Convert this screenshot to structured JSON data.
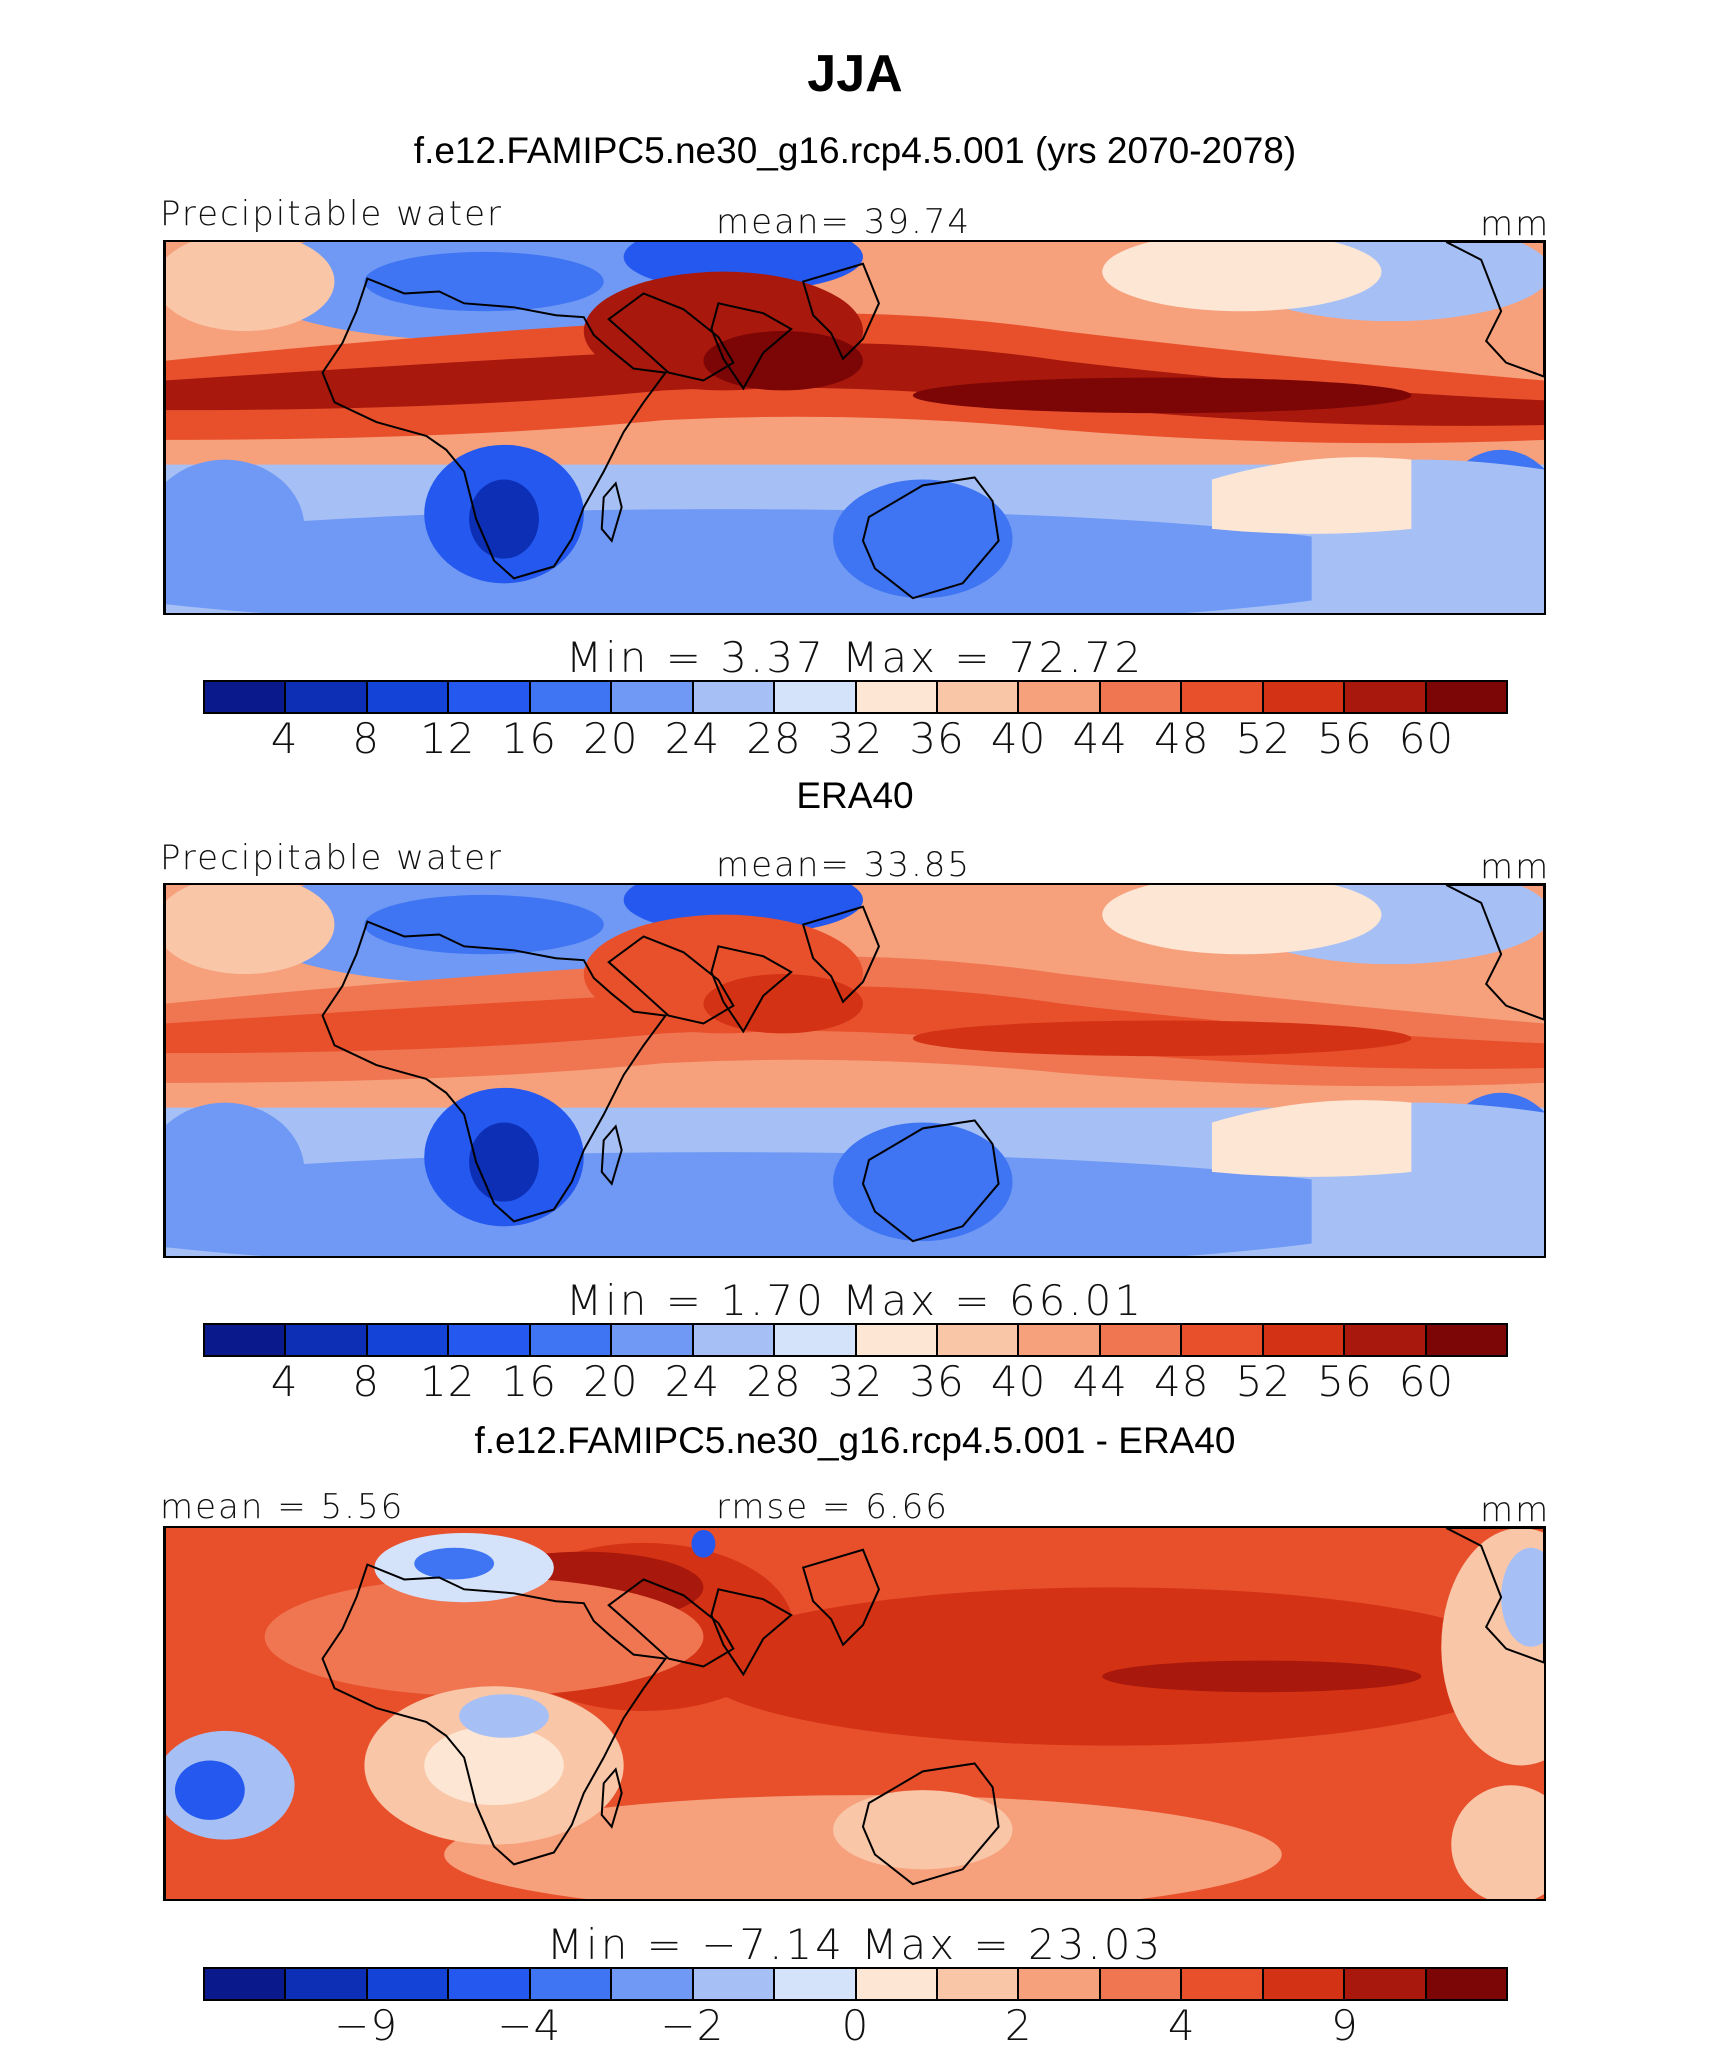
{
  "figure": {
    "title": "JJA"
  },
  "palette": [
    "#0a1a8c",
    "#0c2fb5",
    "#1443d8",
    "#2458ee",
    "#3f74f2",
    "#6f99f4",
    "#a6c0f6",
    "#d4e2fa",
    "#fde6d4",
    "#f9c6a8",
    "#f6a07c",
    "#f07652",
    "#e8502c",
    "#d43214",
    "#a8180c",
    "#7c0606"
  ],
  "panels": [
    {
      "title": "f.e12.FAMIPC5.ne30_g16.rcp4.5.001 (yrs 2070-2078)",
      "left_label": "Precipitable water",
      "center_label": "mean=   39.74",
      "units": "mm",
      "minmax": "Min  =     3.37  Max  =    72.72",
      "ticks": [
        "4",
        "8",
        "12",
        "16",
        "20",
        "24",
        "28",
        "32",
        "36",
        "40",
        "44",
        "48",
        "52",
        "56",
        "60"
      ],
      "variant": "model"
    },
    {
      "title": "ERA40",
      "left_label": "Precipitable water",
      "center_label": "mean=   33.85",
      "units": "mm",
      "minmax": "Min  =     1.70  Max  =    66.01",
      "ticks": [
        "4",
        "8",
        "12",
        "16",
        "20",
        "24",
        "28",
        "32",
        "36",
        "40",
        "44",
        "48",
        "52",
        "56",
        "60"
      ],
      "variant": "obs"
    },
    {
      "title": "f.e12.FAMIPC5.ne30_g16.rcp4.5.001 - ERA40",
      "left_label": "mean =     5.56",
      "center_label": "rmse =     6.66",
      "units": "mm",
      "minmax": "Min  =   −7.14  Max  =    23.03",
      "ticks": [
        "−9",
        "−4",
        "−2",
        "0",
        "2",
        "4",
        "9"
      ],
      "variant": "diff"
    }
  ]
}
